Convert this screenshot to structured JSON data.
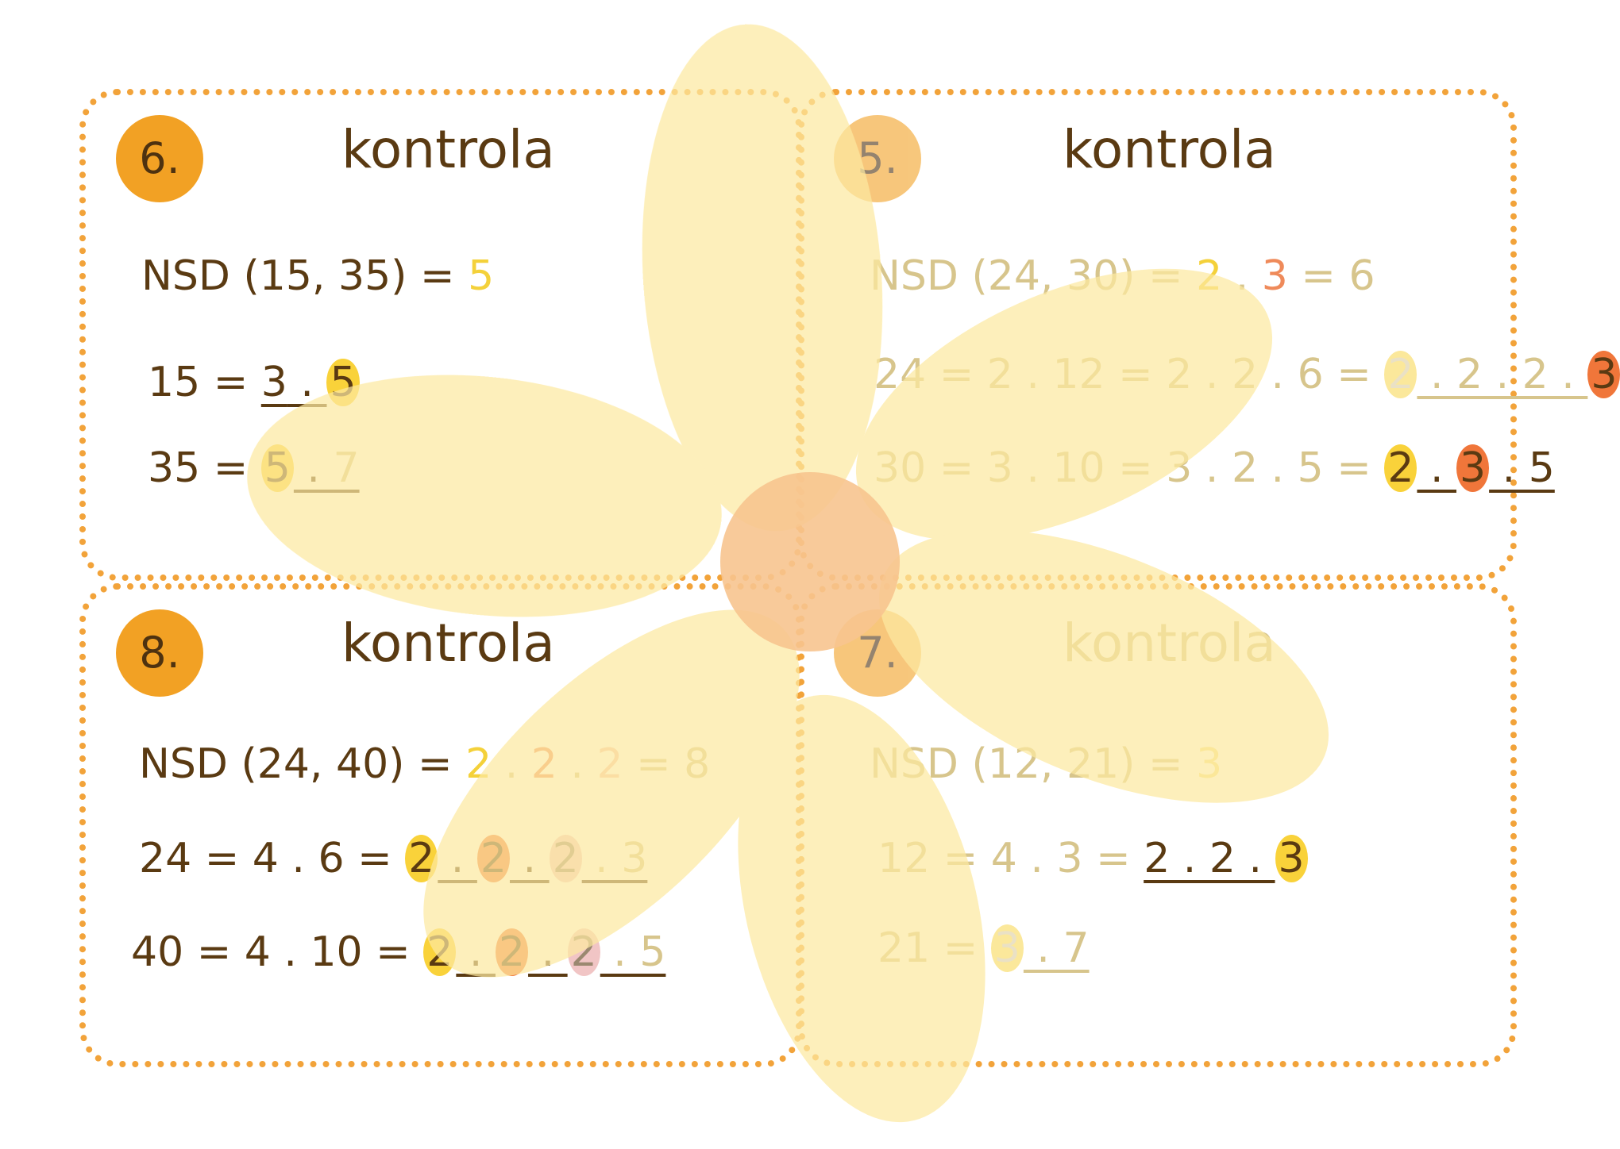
{
  "cards": {
    "c6": {
      "badge": "6.",
      "title": "kontrola",
      "nsd": {
        "label": "NSD (15, 35) = ",
        "result": "5"
      },
      "line1": {
        "lhs": "15 = ",
        "a": "3",
        "dot": " . ",
        "b": "5"
      },
      "line2": {
        "lhs": "35 = ",
        "a": "5",
        "dot": " . ",
        "b": "7"
      }
    },
    "c5": {
      "badge": "5.",
      "title": "kontrola",
      "nsd": {
        "label": "NSD (24, 30) = ",
        "a": "2",
        "dot": " . ",
        "b": "3",
        "eq": " = 6"
      },
      "line1": {
        "lhs": "24 = 2 . 12 = 2 . 2 . 6 = ",
        "a": "2",
        "mid": " . 2 . 2 . ",
        "b": "3"
      },
      "line2": {
        "lhs": "30 = 3 . 10 = 3 . 2 . 5 = ",
        "a": "2",
        "dot": " . ",
        "b": "3",
        "tail": " . 5"
      }
    },
    "c8": {
      "badge": "8.",
      "title": "kontrola",
      "nsd": {
        "label": "NSD (24, 40) = ",
        "a": "2",
        "d1": " . ",
        "b": "2",
        "d2": " . ",
        "c": "2",
        "eq": " = 8"
      },
      "line1": {
        "lhs": "24 = 4 . 6 = ",
        "a": "2",
        "d1": " . ",
        "b": "2",
        "d2": " . ",
        "c": "2",
        "tail": " . 3"
      },
      "line2": {
        "lhs": "40 = 4 . 10 = ",
        "a": "2",
        "d1": " . ",
        "b": "2",
        "d2": " . ",
        "c": "2",
        "tail": " . 5"
      }
    },
    "c7": {
      "badge": "7.",
      "title": "kontrola",
      "nsd": {
        "label": "NSD (12, 21) = ",
        "result": "3"
      },
      "line1": {
        "lhs": "12 = 4 . 3 = ",
        "a": "2 . 2 . ",
        "b": "3"
      },
      "line2": {
        "lhs": "21 = ",
        "a": "3",
        "dot": " . ",
        "b": "7"
      }
    }
  },
  "colors": {
    "frame": "#f2a33a",
    "badge": "#f2a124",
    "petal": "#fde9a0",
    "center": "#f7c48f",
    "text": "#5a3a12",
    "highlight_yellow": "#f9d23a",
    "highlight_orange": "#f0763a"
  }
}
